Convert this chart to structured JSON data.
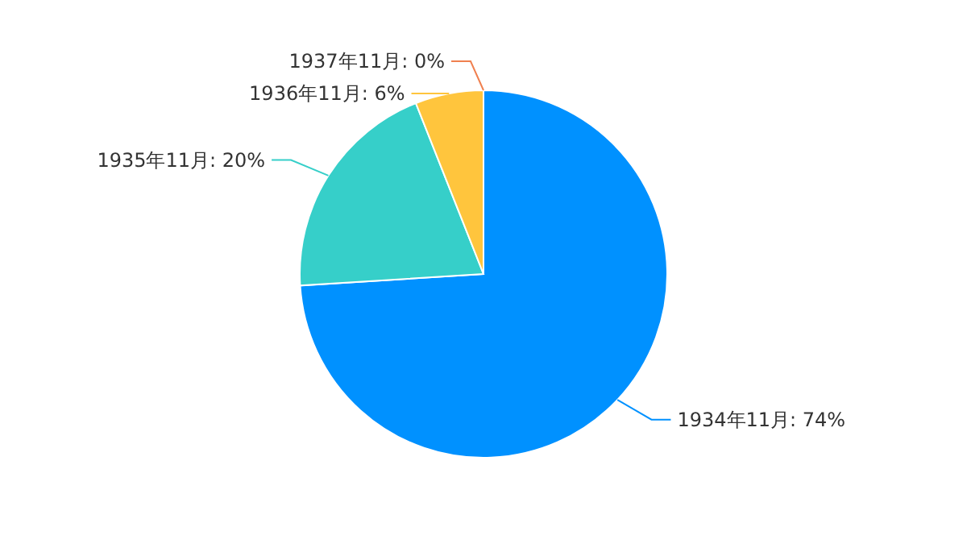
{
  "chart_data": {
    "type": "pie",
    "categories": [
      "1934年11月",
      "1935年11月",
      "1936年11月",
      "1937年11月"
    ],
    "values": [
      74,
      20,
      6,
      0
    ],
    "colors": [
      "#0091ff",
      "#36cfc9",
      "#ffc53d",
      "#f0804f"
    ],
    "value_labels": [
      ": 74%",
      ": 20%",
      ": 6%",
      ": 0%"
    ]
  }
}
